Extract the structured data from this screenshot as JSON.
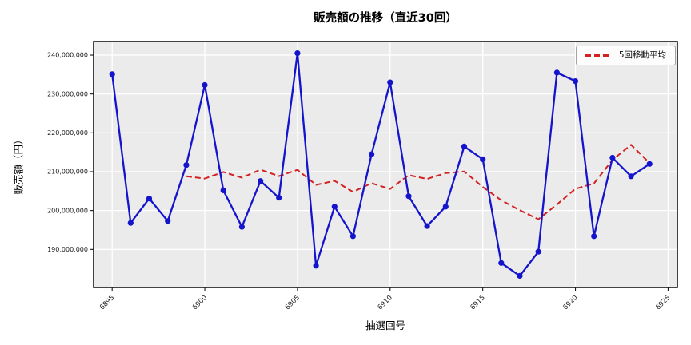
{
  "figure": {
    "title": "販売額の推移（直近30回）",
    "xlabel": "抽選回号",
    "ylabel": "販売額（円）",
    "legend_label": "5回移動平均"
  },
  "colors": {
    "sales_line": "#1414CC",
    "moving_avg_line": "#D42222",
    "plot_bg": "#EBEBEB",
    "grid": "#FFFFFF",
    "spine": "#141414",
    "legend_bg": "#FFFFFF",
    "legend_border": "#A3A3A3"
  },
  "chart_data": {
    "type": "line",
    "title": "販売額の推移（直近30回）",
    "xlabel": "抽選回号",
    "ylabel": "販売額（円）",
    "grid": true,
    "legend_position": "upper right",
    "x": [
      6895,
      6896,
      6897,
      6898,
      6899,
      6900,
      6901,
      6902,
      6903,
      6904,
      6905,
      6906,
      6907,
      6908,
      6909,
      6910,
      6911,
      6912,
      6913,
      6914,
      6915,
      6916,
      6917,
      6918,
      6919,
      6920,
      6921,
      6922,
      6923,
      6924
    ],
    "series": [
      {
        "name": "販売額",
        "color": "#1414CC",
        "line_style": "solid",
        "marker": "circle",
        "values": [
          235100000,
          196800000,
          203100000,
          197300000,
          211700000,
          232300000,
          205200000,
          195800000,
          207600000,
          203300000,
          240500000,
          185800000,
          201000000,
          193400000,
          214500000,
          233000000,
          203700000,
          196000000,
          201000000,
          216500000,
          213200000,
          186500000,
          183200000,
          189400000,
          235500000,
          233300000,
          193400000,
          213600000,
          208800000,
          212000000
        ]
      },
      {
        "name": "5回移動平均",
        "color": "#D42222",
        "line_style": "dashed",
        "marker": "none",
        "values": [
          null,
          null,
          null,
          null,
          208800000,
          208240000,
          209920000,
          208460000,
          210520000,
          208840000,
          210480000,
          206600000,
          207640000,
          204800000,
          207040000,
          205540000,
          209120000,
          208120000,
          209640000,
          210040000,
          206080000,
          202640000,
          200080000,
          197760000,
          201560000,
          205580000,
          206960000,
          213040000,
          216920000,
          212220000
        ]
      }
    ],
    "x_ticks": [
      6895,
      6900,
      6905,
      6910,
      6915,
      6920,
      6925
    ],
    "y_ticks": [
      190000000,
      200000000,
      210000000,
      220000000,
      230000000,
      240000000
    ],
    "y_tick_labels": [
      "190,000,000",
      "200,000,000",
      "210,000,000",
      "220,000,000",
      "230,000,000",
      "240,000,000"
    ],
    "xlim": [
      6894.0,
      6925.5
    ],
    "ylim": [
      180200000,
      243500000
    ]
  }
}
